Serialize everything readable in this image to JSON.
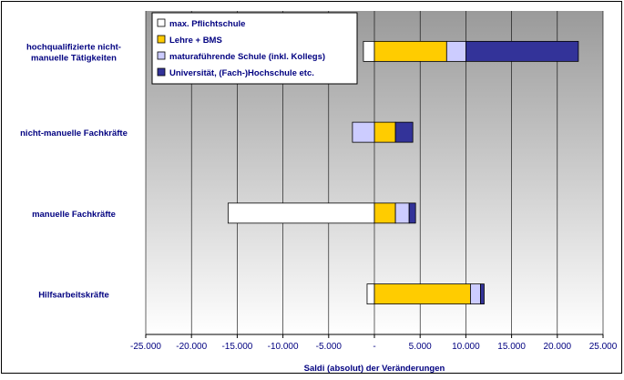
{
  "chart_data": {
    "type": "bar",
    "orientation": "horizontal",
    "stacked": true,
    "diverging": true,
    "title": "",
    "xlabel": "Saldi (absolut) der Veränderungen",
    "ylabel": "",
    "xlim": [
      -25000,
      25000
    ],
    "x_ticks": [
      -25000,
      -20000,
      -15000,
      -10000,
      -5000,
      0,
      5000,
      10000,
      15000,
      20000,
      25000
    ],
    "x_tick_labels": [
      "-25.000",
      "-20.000",
      "-15.000",
      "-10.000",
      "-5.000",
      "-",
      "5.000",
      "10.000",
      "15.000",
      "20.000",
      "25.000"
    ],
    "grid": "vertical",
    "legend_position": "top-left",
    "categories": [
      "hochqualifizierte nicht-manuelle Tätigkeiten",
      "nicht-manuelle Fachkräfte",
      "manuelle Fachkräfte",
      "Hilfsarbeitskräfte"
    ],
    "category_lines": [
      [
        "hochqualifizierte nicht-",
        "manuelle Tätigkeiten"
      ],
      [
        "nicht-manuelle Fachkräfte"
      ],
      [
        "manuelle Fachkräfte"
      ],
      [
        "Hilfsarbeitskräfte"
      ]
    ],
    "series": [
      {
        "name": "max. Pflichtschule",
        "color": "#ffffff",
        "values": [
          -1200,
          0,
          -16000,
          -800
        ]
      },
      {
        "name": "Lehre + BMS",
        "color": "#ffcc00",
        "values": [
          7900,
          2300,
          2300,
          10500
        ]
      },
      {
        "name": "maturaführende Schule (inkl. Kollegs)",
        "color": "#ccccff",
        "values": [
          2100,
          -2400,
          1500,
          1100
        ]
      },
      {
        "name": "Universität, (Fach-)Hochschule etc.",
        "color": "#333399",
        "values": [
          12300,
          1900,
          700,
          400
        ]
      }
    ]
  }
}
